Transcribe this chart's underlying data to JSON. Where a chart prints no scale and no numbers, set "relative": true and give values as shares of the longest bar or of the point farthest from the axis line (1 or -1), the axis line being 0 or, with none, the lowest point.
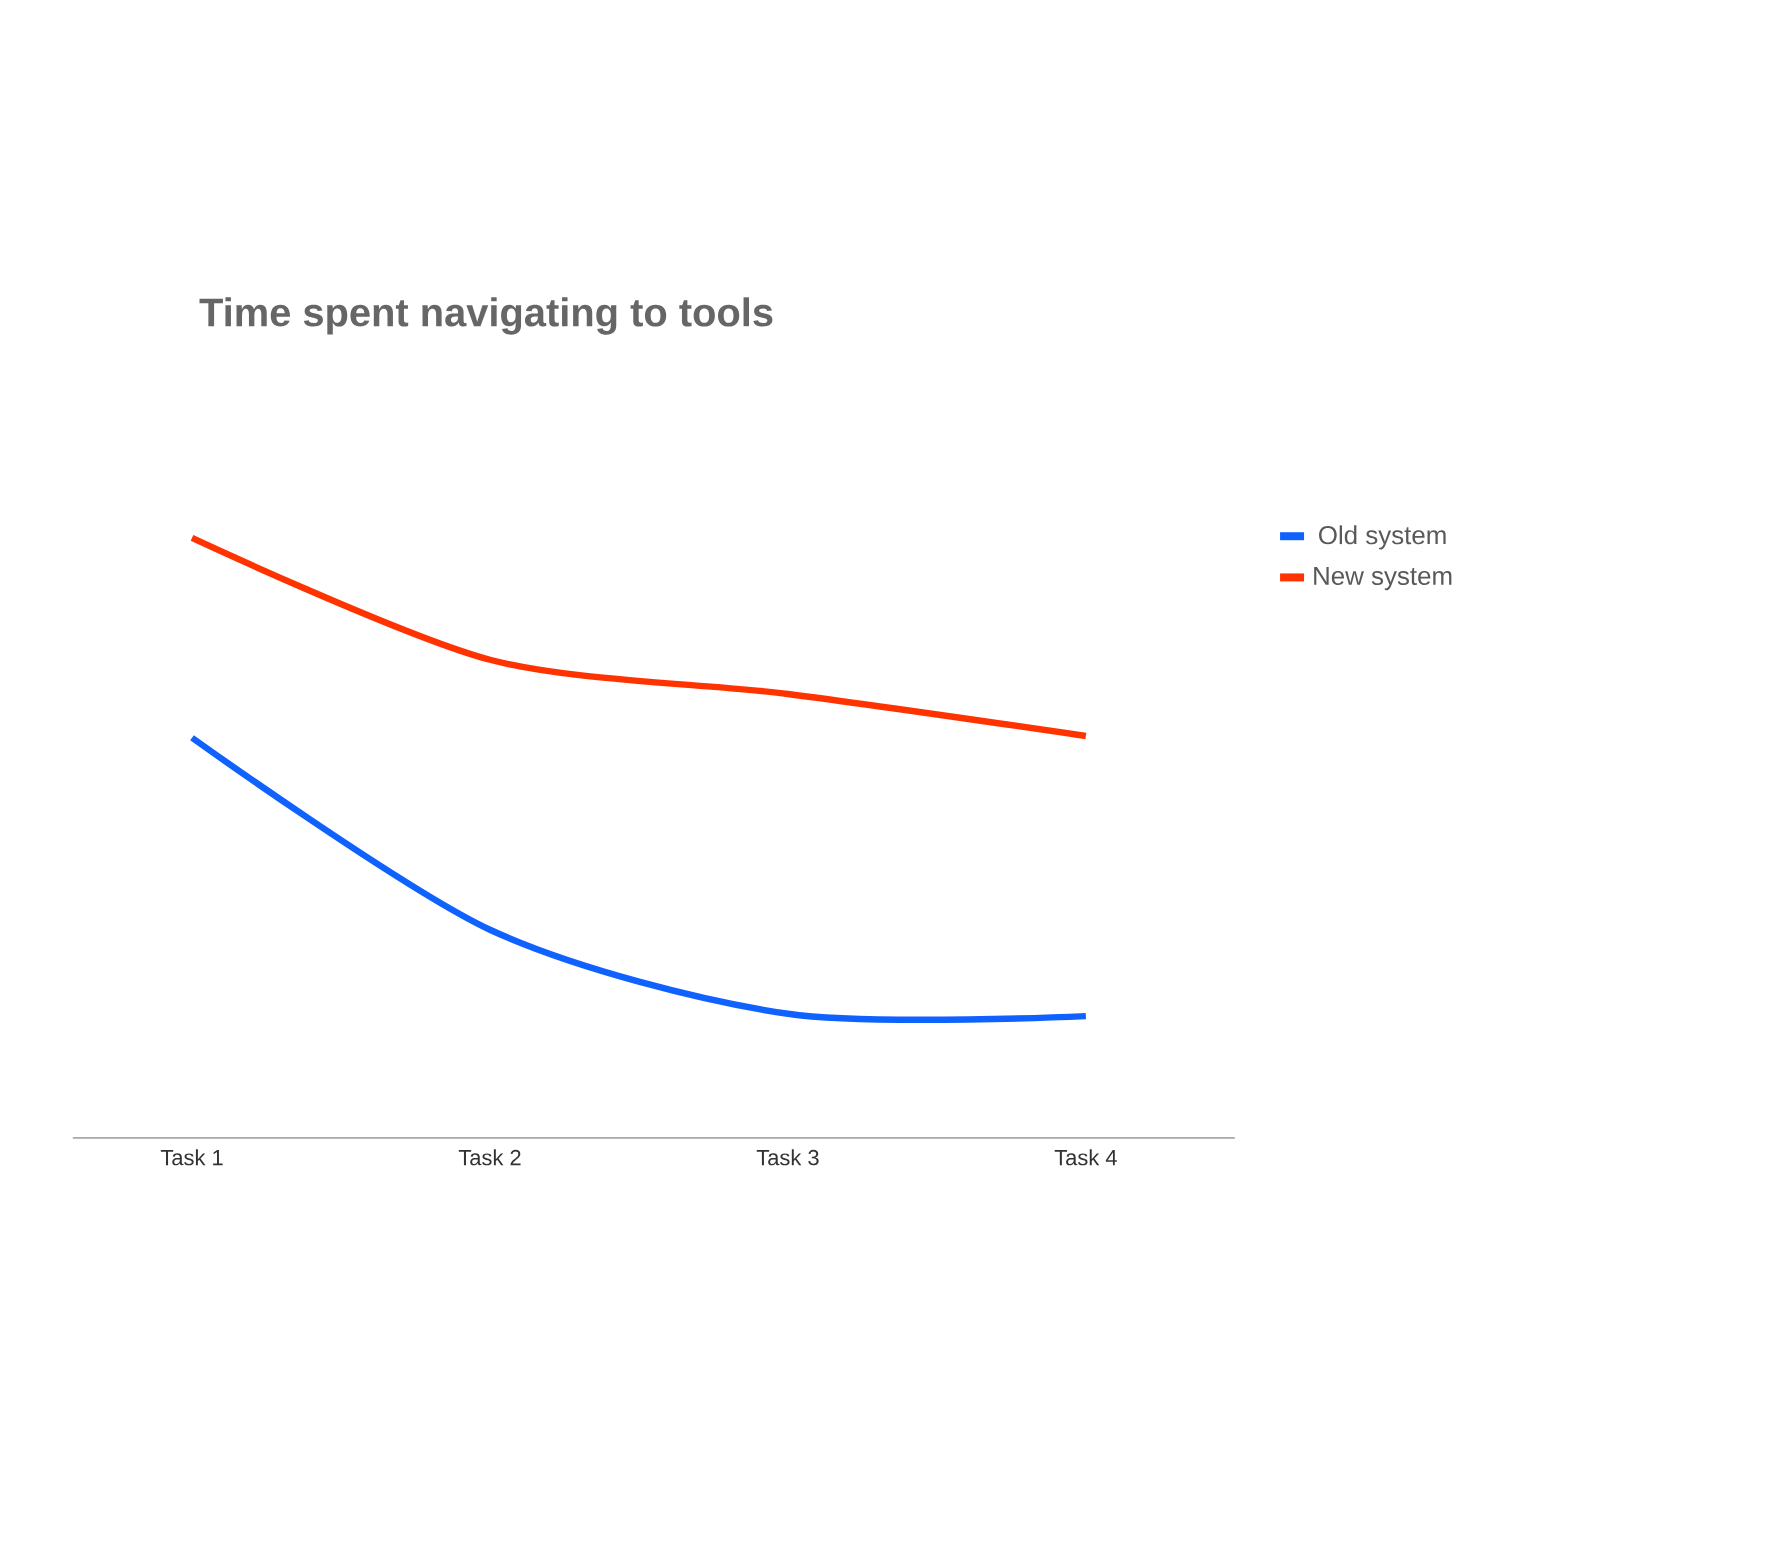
{
  "chart_data": {
    "type": "line",
    "title": "Time spent navigating to tools",
    "relative": true,
    "legend": "right",
    "marker": "none",
    "categories": [
      "Task 1",
      "Task 2",
      "Task 3",
      "Task 4"
    ],
    "series": [
      {
        "name": "Old system",
        "color": "#0f62fe",
        "values": [
          0.667,
          0.347,
          0.207,
          0.203
        ]
      },
      {
        "name": "New system",
        "color": "#ff3300",
        "values": [
          1,
          0.797,
          0.74,
          0.67
        ]
      }
    ]
  }
}
